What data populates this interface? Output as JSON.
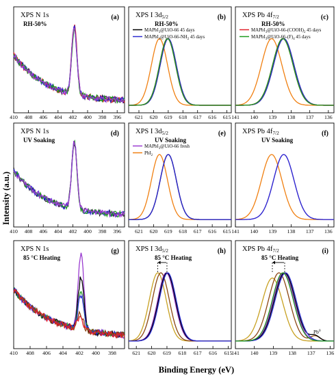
{
  "figure": {
    "xlabel": "Binding Energy (eV)",
    "ylabel": "Intensity (a.u.)"
  },
  "chart_data": [
    {
      "type": "line",
      "panel_label": "(a)",
      "title": "XPS N 1s",
      "condition": "RH-50%",
      "x_ticks": [
        410,
        408,
        406,
        404,
        402,
        400,
        398,
        396
      ],
      "xlim": [
        410,
        395
      ],
      "series": [
        {
          "color": "#222222",
          "peak": 401.8,
          "height": 0.8
        },
        {
          "color": "#e0202a",
          "peak": 401.8,
          "height": 0.82
        },
        {
          "color": "#2a2ad0",
          "peak": 401.8,
          "height": 0.78
        },
        {
          "color": "#1e9a1e",
          "peak": 401.8,
          "height": 0.75
        },
        {
          "color": "#9a3bd0",
          "peak": 401.8,
          "height": 0.8
        }
      ]
    },
    {
      "type": "line",
      "panel_label": "(b)",
      "title": "XPS I 3d5/2",
      "condition": "RH-50%",
      "x_ticks": [
        621,
        620,
        619,
        618,
        617,
        616,
        615
      ],
      "xlim": [
        621.7,
        614.7
      ],
      "legend": [
        "MAPbI3@UiO-66 45 days",
        "MAPbI3@UiO-66-NH2 45 days"
      ],
      "series": [
        {
          "color": "#f07f10",
          "peak": 619.6
        },
        {
          "color": "#000000",
          "peak": 619.0
        },
        {
          "color": "#2a2ad0",
          "peak": 619.0
        },
        {
          "color": "#e0202a",
          "peak": 619.05
        },
        {
          "color": "#1e9a1e",
          "peak": 619.05
        }
      ]
    },
    {
      "type": "line",
      "panel_label": "(c)",
      "title": "XPS Pb 4f7/2",
      "condition": "RH-50%",
      "x_ticks": [
        141,
        140,
        139,
        138,
        137,
        136
      ],
      "xlim": [
        141,
        135.7
      ],
      "legend": [
        "MAPbI3@UiO-66-(COOH)2 45 days",
        "MAPbI3@UiO-66-(F)4 45 days"
      ],
      "series": [
        {
          "color": "#f07f10",
          "peak": 139.05
        },
        {
          "color": "#000000",
          "peak": 138.4
        },
        {
          "color": "#2a2ad0",
          "peak": 138.4
        },
        {
          "color": "#e0202a",
          "peak": 138.45
        },
        {
          "color": "#1e9a1e",
          "peak": 138.45
        }
      ]
    },
    {
      "type": "line",
      "panel_label": "(d)",
      "title": "XPS N 1s",
      "condition": "UV Soaking",
      "x_ticks": [
        410,
        408,
        406,
        404,
        402,
        400,
        398,
        396
      ],
      "xlim": [
        410,
        395
      ],
      "series": [
        {
          "color": "#222222",
          "peak": 401.8
        },
        {
          "color": "#2a2ad0",
          "peak": 401.8
        },
        {
          "color": "#1e9a1e",
          "peak": 401.8
        },
        {
          "color": "#9a3bd0",
          "peak": 401.8
        }
      ]
    },
    {
      "type": "line",
      "panel_label": "(e)",
      "title": "XPS I 3d5/2",
      "condition": "UV Soaking",
      "x_ticks": [
        621,
        620,
        619,
        618,
        617,
        616,
        615
      ],
      "xlim": [
        621.7,
        614.7
      ],
      "legend": [
        "MAPbI3@UiO-66 fresh",
        "PbI2"
      ],
      "series": [
        {
          "color": "#f07f10",
          "peak": 619.6
        },
        {
          "color": "#9a3bd0",
          "peak": 619.0
        },
        {
          "color": "#000000",
          "peak": 619.0
        },
        {
          "color": "#2a2ad0",
          "peak": 619.0
        }
      ]
    },
    {
      "type": "line",
      "panel_label": "(f)",
      "title": "XPS Pb 4f7/2",
      "condition": "UV Soaking",
      "x_ticks": [
        141,
        140,
        139,
        138,
        137,
        136
      ],
      "xlim": [
        141,
        135.7
      ],
      "series": [
        {
          "color": "#f07f10",
          "peak": 139.05
        },
        {
          "color": "#9a3bd0",
          "peak": 138.4
        },
        {
          "color": "#2a2ad0",
          "peak": 138.4
        }
      ]
    },
    {
      "type": "line",
      "panel_label": "(g)",
      "title": "XPS N 1s",
      "condition": "85 °C Heating",
      "x_ticks": [
        410,
        408,
        406,
        404,
        402,
        400,
        398
      ],
      "xlim": [
        410,
        396.5
      ],
      "series": [
        {
          "color": "#9a3bd0",
          "peak": 401.8,
          "height": 0.85
        },
        {
          "color": "#000000",
          "peak": 401.8,
          "height": 0.6
        },
        {
          "color": "#1e9a1e",
          "peak": 401.8,
          "height": 0.46
        },
        {
          "color": "#2a2ad0",
          "peak": 401.8,
          "height": 0.4
        },
        {
          "color": "#8b4513",
          "peak": 401.9,
          "height": 0.18
        },
        {
          "color": "#e0202a",
          "peak": 401.9,
          "height": 0.14
        }
      ]
    },
    {
      "type": "line",
      "panel_label": "(h)",
      "title": "XPS I 3d5/2",
      "condition": "85 °C Heating",
      "x_ticks": [
        621,
        620,
        619,
        618,
        617,
        616,
        615
      ],
      "xlim": [
        621.5,
        614.8
      ],
      "series": [
        {
          "color": "#c7a020",
          "peak": 619.6
        },
        {
          "color": "#8b4513",
          "peak": 619.4
        },
        {
          "color": "#9a3bd0",
          "peak": 619.05
        },
        {
          "color": "#000000",
          "peak": 619.0
        },
        {
          "color": "#2a2ad0",
          "peak": 618.95
        }
      ]
    },
    {
      "type": "line",
      "panel_label": "(i)",
      "title": "XPS Pb 4f7/2",
      "condition": "85 °C Heating",
      "x_ticks": [
        141,
        140,
        139,
        138,
        137,
        136
      ],
      "xlim": [
        141,
        135.8
      ],
      "annotation": "Pb0",
      "series": [
        {
          "color": "#c7a020",
          "peak": 139.05
        },
        {
          "color": "#8b4513",
          "peak": 138.7
        },
        {
          "color": "#9a3bd0",
          "peak": 138.45
        },
        {
          "color": "#000000",
          "peak": 138.4
        },
        {
          "color": "#2a2ad0",
          "peak": 138.35
        },
        {
          "color": "#1e9a1e",
          "peak": 138.5
        }
      ]
    }
  ]
}
